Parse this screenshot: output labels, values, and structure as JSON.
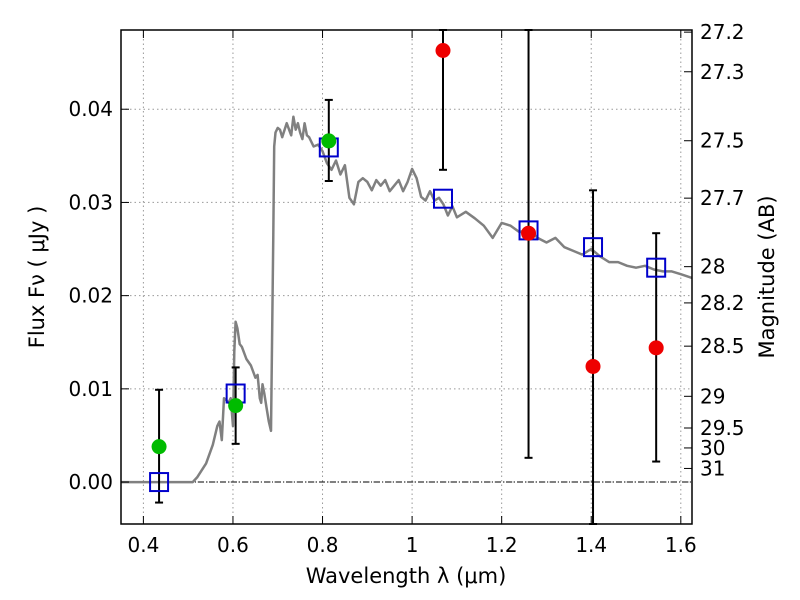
{
  "chart_data": {
    "type": "scatter",
    "title": "",
    "xlabel": "Wavelength  λ (μm)",
    "ylabel": "Flux  Fν ( μJy )",
    "ylabel_right": "Magnitude (AB)",
    "xlim": [
      0.35,
      1.625
    ],
    "ylim": [
      -0.0045,
      0.0485
    ],
    "grid": true,
    "x_ticks": [
      0.4,
      0.6,
      0.8,
      1.0,
      1.2,
      1.4,
      1.6
    ],
    "x_tick_labels": [
      "0.4",
      "0.6",
      "0.8",
      "1",
      "1.2",
      "1.4",
      "1.6"
    ],
    "y_ticks": [
      0.0,
      0.01,
      0.02,
      0.03,
      0.04
    ],
    "y_tick_labels": [
      "0.00",
      "0.01",
      "0.02",
      "0.03",
      "0.04"
    ],
    "right_ticks": [
      {
        "label": "27.2",
        "flux": 0.04827
      },
      {
        "label": "27.3",
        "flux": 0.04402
      },
      {
        "label": "27.5",
        "flux": 0.03662
      },
      {
        "label": "27.7",
        "flux": 0.03046
      },
      {
        "label": "28",
        "flux": 0.02311
      },
      {
        "label": "28.2",
        "flux": 0.01922
      },
      {
        "label": "28.5",
        "flux": 0.01458
      },
      {
        "label": "29",
        "flux": 0.0092
      },
      {
        "label": "29.5",
        "flux": 0.0058
      },
      {
        "label": "30",
        "flux": 0.00366
      },
      {
        "label": "31",
        "flux": 0.00146
      }
    ],
    "colors": {
      "model": "#808080",
      "model_photometry": "#0000cc",
      "green_points": "#00bb00",
      "red_points": "#ee0000",
      "errorbars": "#000000",
      "grid": "#999999"
    },
    "series": [
      {
        "role": "model_spectrum",
        "x": [
          0.35,
          0.51,
          0.52,
          0.54,
          0.555,
          0.565,
          0.57,
          0.575,
          0.58,
          0.585,
          0.59,
          0.595,
          0.6,
          0.603,
          0.606,
          0.61,
          0.615,
          0.62,
          0.63,
          0.64,
          0.65,
          0.655,
          0.66,
          0.663,
          0.666,
          0.67,
          0.675,
          0.68,
          0.685,
          0.69,
          0.692,
          0.695,
          0.7,
          0.705,
          0.71,
          0.72,
          0.73,
          0.735,
          0.74,
          0.745,
          0.75,
          0.755,
          0.76,
          0.765,
          0.77,
          0.78,
          0.79,
          0.8,
          0.81,
          0.82,
          0.83,
          0.84,
          0.85,
          0.86,
          0.87,
          0.88,
          0.89,
          0.9,
          0.91,
          0.92,
          0.93,
          0.94,
          0.95,
          0.96,
          0.97,
          0.98,
          0.99,
          1.0,
          1.01,
          1.02,
          1.03,
          1.04,
          1.05,
          1.06,
          1.07,
          1.08,
          1.09,
          1.1,
          1.12,
          1.14,
          1.16,
          1.18,
          1.2,
          1.22,
          1.24,
          1.26,
          1.28,
          1.3,
          1.32,
          1.34,
          1.36,
          1.38,
          1.4,
          1.42,
          1.44,
          1.46,
          1.48,
          1.5,
          1.52,
          1.54,
          1.56,
          1.58,
          1.6,
          1.625
        ],
        "y": [
          0.0,
          0.0,
          0.0005,
          0.002,
          0.004,
          0.006,
          0.0065,
          0.0045,
          0.009,
          0.0088,
          0.0085,
          0.009,
          0.006,
          0.014,
          0.0172,
          0.0165,
          0.0148,
          0.0145,
          0.0132,
          0.0125,
          0.0112,
          0.0115,
          0.009,
          0.0085,
          0.0105,
          0.0095,
          0.008,
          0.0065,
          0.0055,
          0.0265,
          0.036,
          0.0375,
          0.038,
          0.0378,
          0.037,
          0.0385,
          0.0372,
          0.0392,
          0.0378,
          0.0385,
          0.0375,
          0.0368,
          0.0385,
          0.0372,
          0.037,
          0.036,
          0.0362,
          0.0355,
          0.0342,
          0.0335,
          0.0345,
          0.033,
          0.034,
          0.0305,
          0.0298,
          0.0322,
          0.0326,
          0.0322,
          0.0313,
          0.0324,
          0.0318,
          0.0324,
          0.0312,
          0.0318,
          0.0324,
          0.0312,
          0.0322,
          0.0336,
          0.0326,
          0.0306,
          0.0302,
          0.0312,
          0.0302,
          0.0305,
          0.0298,
          0.0286,
          0.0296,
          0.0284,
          0.029,
          0.0283,
          0.0275,
          0.0262,
          0.0278,
          0.0275,
          0.0268,
          0.0272,
          0.0262,
          0.0257,
          0.0262,
          0.0252,
          0.0248,
          0.0244,
          0.025,
          0.0242,
          0.0236,
          0.0236,
          0.0232,
          0.023,
          0.0232,
          0.0228,
          0.0226,
          0.0226,
          0.0223,
          0.0219
        ]
      },
      {
        "role": "model_photometry",
        "x": [
          0.435,
          0.606,
          0.814,
          1.069,
          1.26,
          1.404,
          1.545
        ],
        "y": [
          0.0,
          0.0095,
          0.0359,
          0.0304,
          0.027,
          0.0252,
          0.023
        ]
      },
      {
        "role": "observed_green",
        "x": [
          0.435,
          0.606,
          0.814
        ],
        "y": [
          0.0038,
          0.0082,
          0.0366
        ],
        "err_low": [
          -0.0022,
          0.0041,
          0.0323
        ],
        "err_high": [
          0.0099,
          0.0123,
          0.041
        ]
      },
      {
        "role": "observed_red",
        "x": [
          1.069,
          1.26,
          1.404,
          1.545
        ],
        "y": [
          0.0463,
          0.0267,
          0.0124,
          0.0144
        ],
        "err_low": [
          0.0335,
          0.0026,
          -0.0045,
          0.0022
        ],
        "err_high": [
          0.0485,
          0.0485,
          0.0313,
          0.0267
        ]
      }
    ]
  }
}
